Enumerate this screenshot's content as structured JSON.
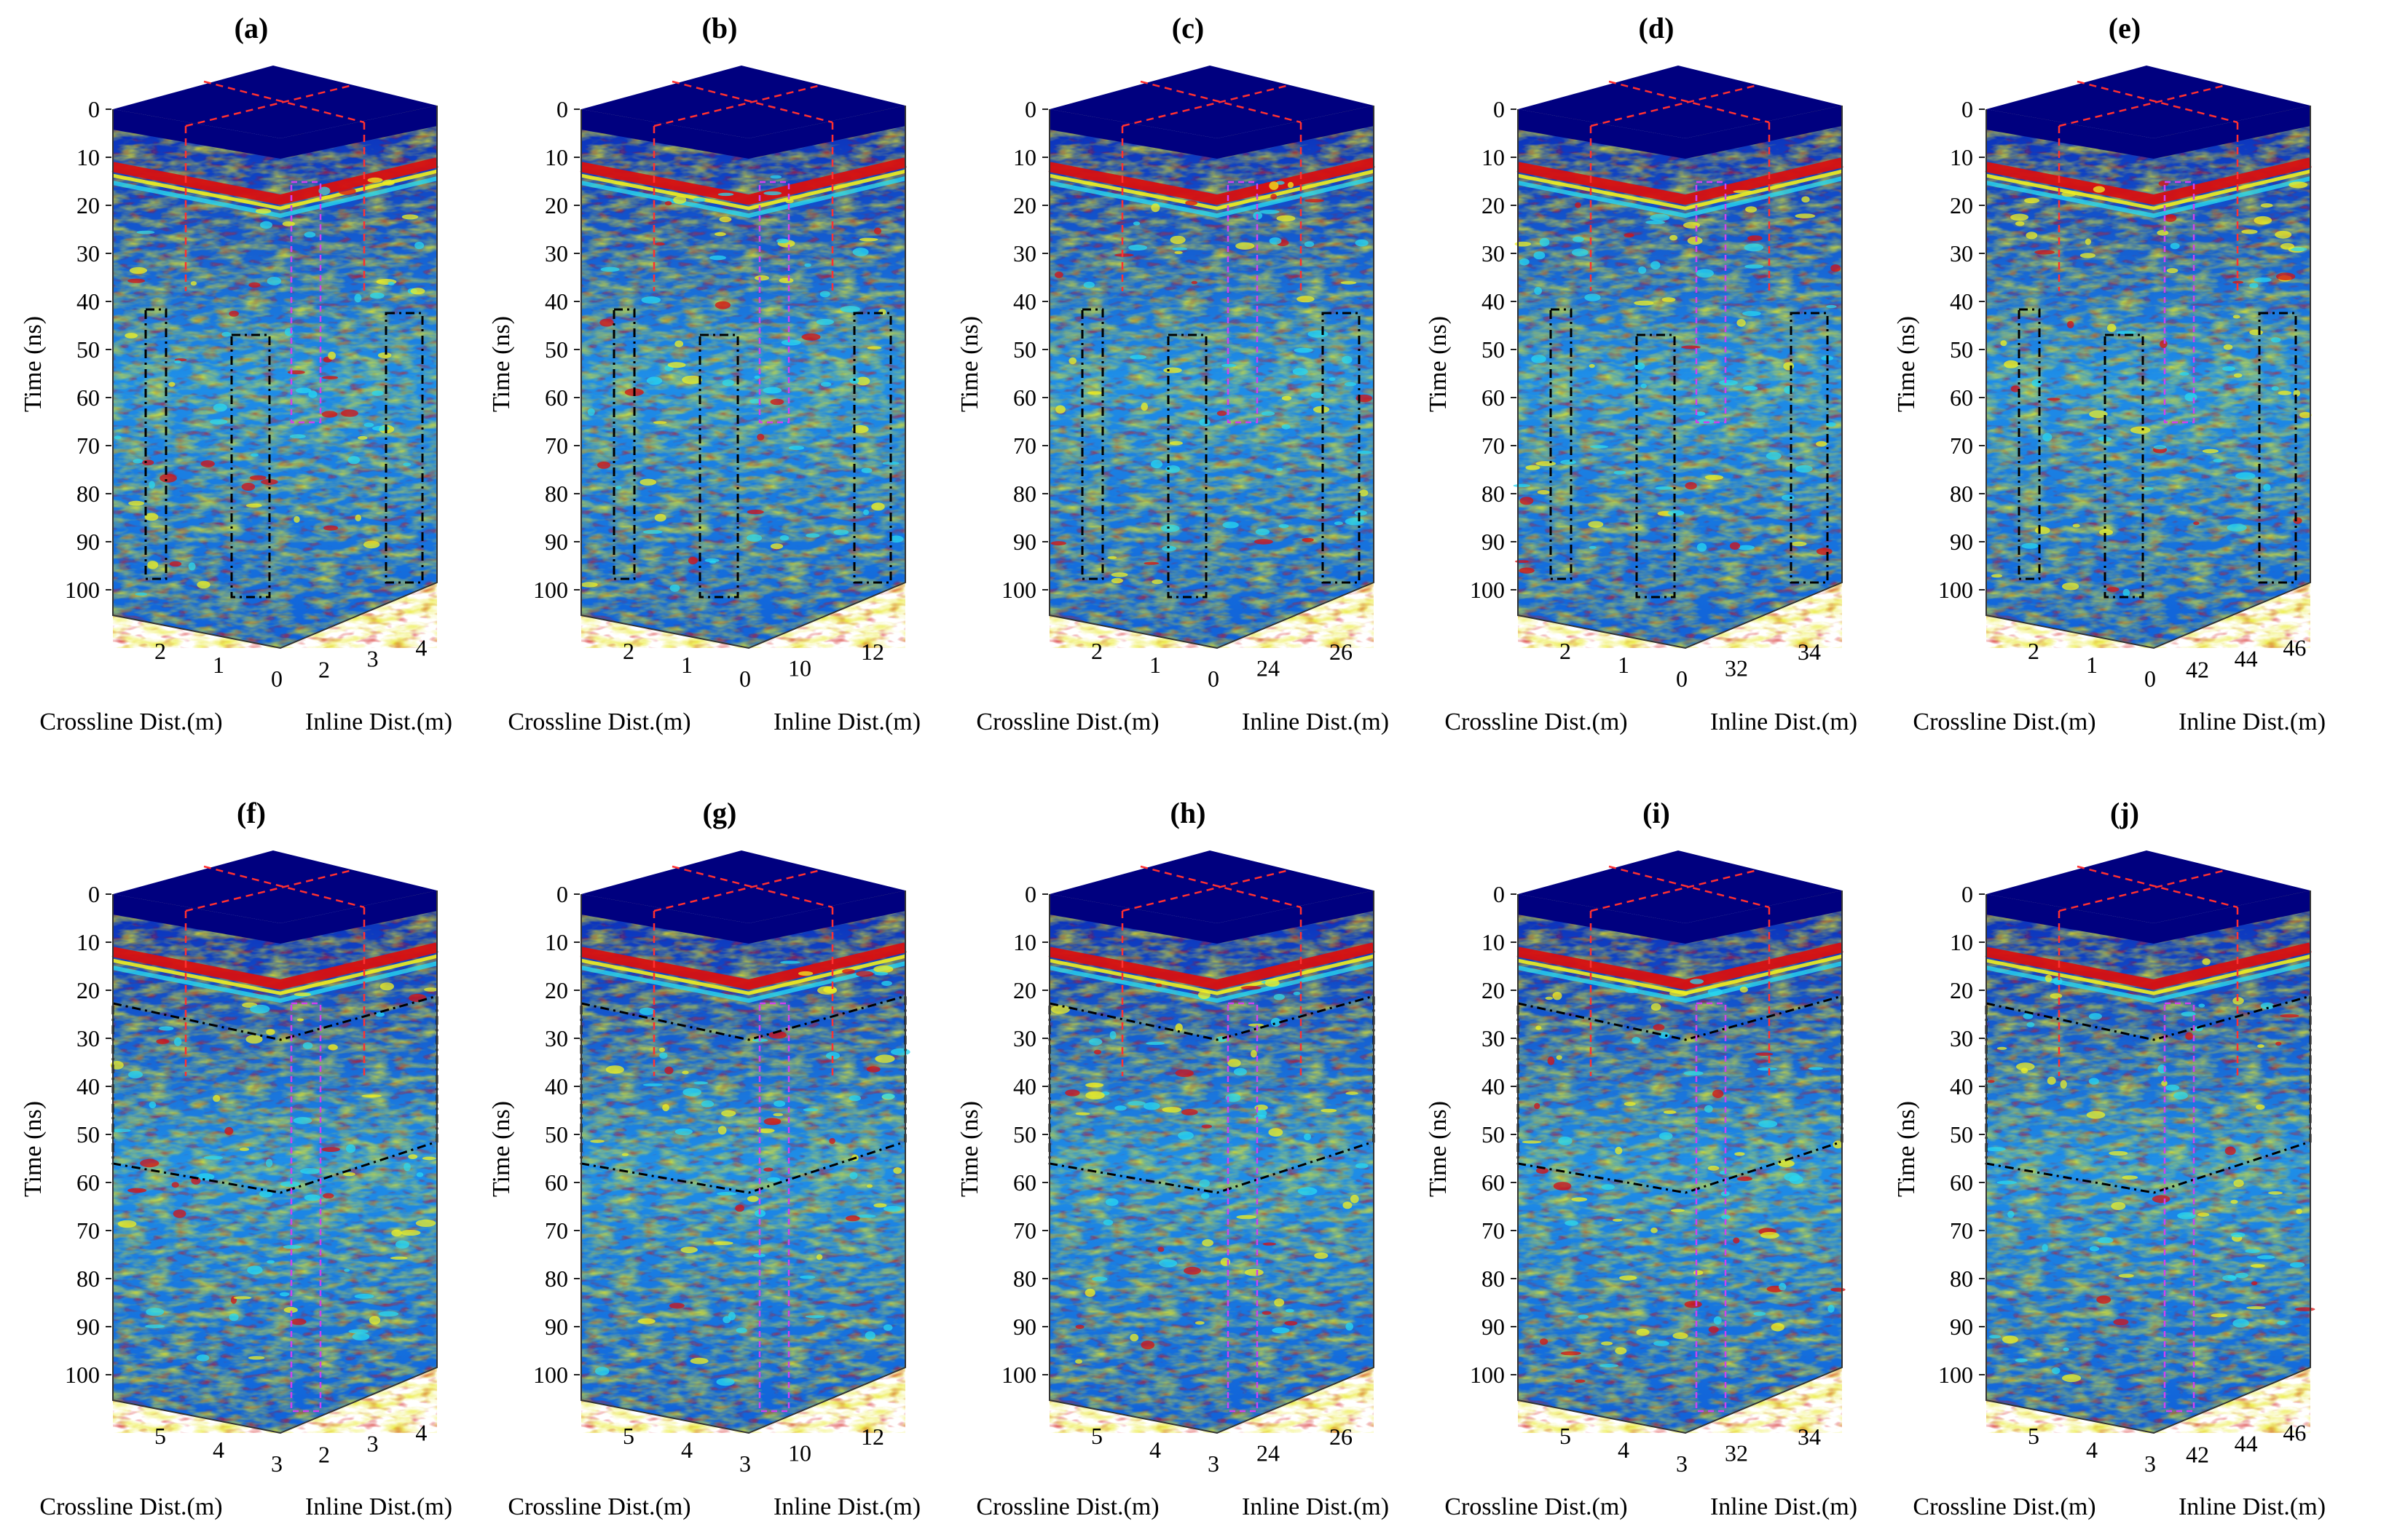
{
  "figure": {
    "y_axis_title": "Time (ns)",
    "crossline_title": "Crossline Dist.(m)",
    "inline_title": "Inline Dist.(m)",
    "time_ticks": [
      "0",
      "10",
      "20",
      "30",
      "40",
      "50",
      "60",
      "70",
      "80",
      "90",
      "100"
    ],
    "colors": {
      "deep_blue": "#00007f",
      "blue": "#1040d8",
      "cyan": "#28d8f0",
      "yellow": "#f0f020",
      "red": "#d81010",
      "dashed_red": "#ff3030",
      "dashed_black": "#000000",
      "dashed_magenta": "#d040f0",
      "dashed_green": "#20f020"
    },
    "panels": [
      {
        "label": "(a)",
        "crossline_ticks": [
          "2",
          "1",
          "0"
        ],
        "inline_ticks": [
          "2",
          "3",
          "4"
        ],
        "row": 0,
        "col": 0
      },
      {
        "label": "(b)",
        "crossline_ticks": [
          "2",
          "1",
          "0"
        ],
        "inline_ticks": [
          "10",
          "12"
        ],
        "row": 0,
        "col": 1
      },
      {
        "label": "(c)",
        "crossline_ticks": [
          "2",
          "1",
          "0"
        ],
        "inline_ticks": [
          "24",
          "26"
        ],
        "row": 0,
        "col": 2
      },
      {
        "label": "(d)",
        "crossline_ticks": [
          "2",
          "1",
          "0"
        ],
        "inline_ticks": [
          "32",
          "34"
        ],
        "row": 0,
        "col": 3
      },
      {
        "label": "(e)",
        "crossline_ticks": [
          "2",
          "1",
          "0"
        ],
        "inline_ticks": [
          "42",
          "44",
          "46"
        ],
        "row": 0,
        "col": 4
      },
      {
        "label": "(f)",
        "crossline_ticks": [
          "5",
          "4",
          "3"
        ],
        "inline_ticks": [
          "2",
          "3",
          "4"
        ],
        "row": 1,
        "col": 0
      },
      {
        "label": "(g)",
        "crossline_ticks": [
          "5",
          "4",
          "3"
        ],
        "inline_ticks": [
          "10",
          "12"
        ],
        "row": 1,
        "col": 1
      },
      {
        "label": "(h)",
        "crossline_ticks": [
          "5",
          "4",
          "3"
        ],
        "inline_ticks": [
          "24",
          "26"
        ],
        "row": 1,
        "col": 2
      },
      {
        "label": "(i)",
        "crossline_ticks": [
          "5",
          "4",
          "3"
        ],
        "inline_ticks": [
          "32",
          "34"
        ],
        "row": 1,
        "col": 3
      },
      {
        "label": "(j)",
        "crossline_ticks": [
          "5",
          "4",
          "3"
        ],
        "inline_ticks": [
          "42",
          "44",
          "46"
        ],
        "row": 1,
        "col": 4
      }
    ]
  }
}
